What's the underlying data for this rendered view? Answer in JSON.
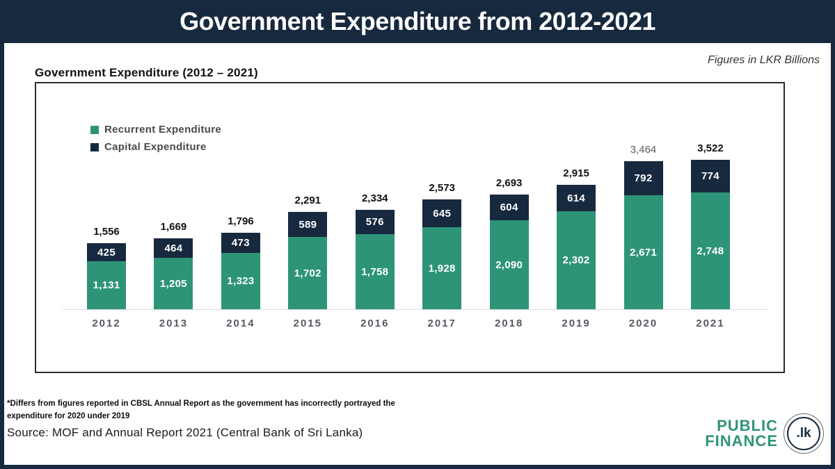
{
  "banner": {
    "title": "Government Expenditure from 2012-2021"
  },
  "header": {
    "figures_note": "Figures in LKR Billions",
    "chart_title": "Government Expenditure (2012 – 2021)"
  },
  "legend": [
    {
      "label": "Recurrent Expenditure",
      "color": "#2e9478"
    },
    {
      "label": "Capital Expenditure",
      "color": "#17293e"
    }
  ],
  "chart_data": {
    "type": "bar",
    "stacked": true,
    "title": "Government Expenditure (2012 – 2021)",
    "unit": "LKR Billions",
    "categories": [
      "2012",
      "2013",
      "2014",
      "2015",
      "2016",
      "2017",
      "2018",
      "2019",
      "2020",
      "2021"
    ],
    "series": [
      {
        "name": "Recurrent Expenditure",
        "color": "#2e9478",
        "values": [
          1131,
          1205,
          1323,
          1702,
          1758,
          1928,
          2090,
          2302,
          2671,
          2748
        ],
        "values_display": [
          "1,131",
          "1,205",
          "1,323",
          "1,702",
          "1,758",
          "1,928",
          "2,090",
          "2,302",
          "2,671",
          "2,748"
        ]
      },
      {
        "name": "Capital Expenditure",
        "color": "#17293e",
        "values": [
          425,
          464,
          473,
          589,
          576,
          645,
          604,
          614,
          792,
          774
        ],
        "values_display": [
          "425",
          "464",
          "473",
          "589",
          "576",
          "645",
          "604",
          "614",
          "792",
          "774"
        ]
      }
    ],
    "totals": [
      1556,
      1669,
      1796,
      2291,
      2334,
      2573,
      2693,
      2915,
      3464,
      3522
    ],
    "totals_display": [
      "1,556",
      "1,669",
      "1,796",
      "2,291",
      "2,334",
      "2,573",
      "2,693",
      "2,915",
      "3,464",
      "3,522"
    ],
    "muted_total_year": "2020",
    "legend_position": "top-left",
    "grid": false
  },
  "footnote": "*Differs from figures reported in CBSL Annual Report as the government has incorrectly portrayed the expenditure for 2020 under 2019",
  "source": "Source: MOF and Annual Report 2021 (Central Bank of Sri Lanka)",
  "logo": {
    "line1": "PUBLIC",
    "line2": "FINANCE",
    "badge": ".lk"
  },
  "colors": {
    "banner_bg": "#17293e",
    "recurrent": "#2e9478",
    "capital": "#17293e",
    "logo_teal": "#2e9478"
  }
}
